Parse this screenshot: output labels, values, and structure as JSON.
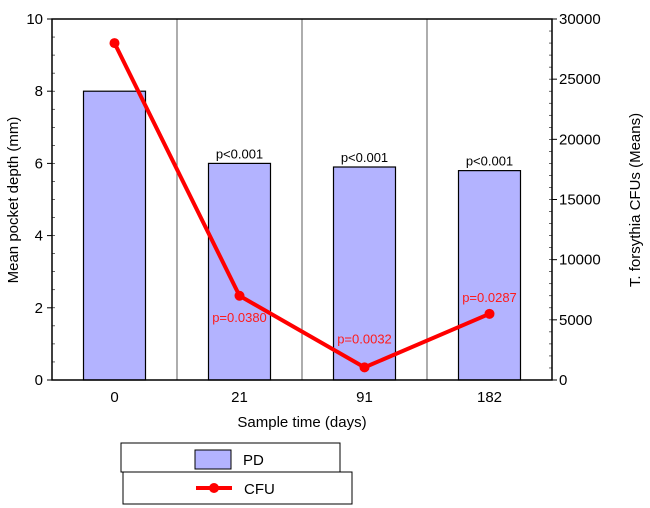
{
  "chart_data": {
    "type": "bar",
    "categories": [
      "0",
      "21",
      "91",
      "182"
    ],
    "xlabel": "Sample time (days)",
    "ylabel": "Mean pocket depth (mm)",
    "y2label": "T. forsythia CFUs (Means)",
    "ylim": [
      0,
      10
    ],
    "y2lim": [
      0,
      30000
    ],
    "yticks": [
      "0",
      "2",
      "4",
      "6",
      "8",
      "10"
    ],
    "y2ticks": [
      "0",
      "5000",
      "10000",
      "15000",
      "20000",
      "25000",
      "30000"
    ],
    "series": [
      {
        "name": "PD",
        "type": "bar",
        "axis": "left",
        "color": "#b3b3ff",
        "values": [
          8.0,
          6.0,
          5.9,
          5.8
        ],
        "labels": [
          "",
          "p<0.001",
          "p<0.001",
          "p<0.001"
        ]
      },
      {
        "name": "CFU",
        "type": "line",
        "axis": "right",
        "color": "#ff0000",
        "values": [
          28000,
          7000,
          1050,
          5500
        ],
        "labels": [
          "",
          "p=0.0380",
          "p=0.0032",
          "p=0.0287"
        ]
      }
    ],
    "legend": {
      "placement": "bottom",
      "entries": [
        "PD",
        "CFU"
      ]
    }
  }
}
